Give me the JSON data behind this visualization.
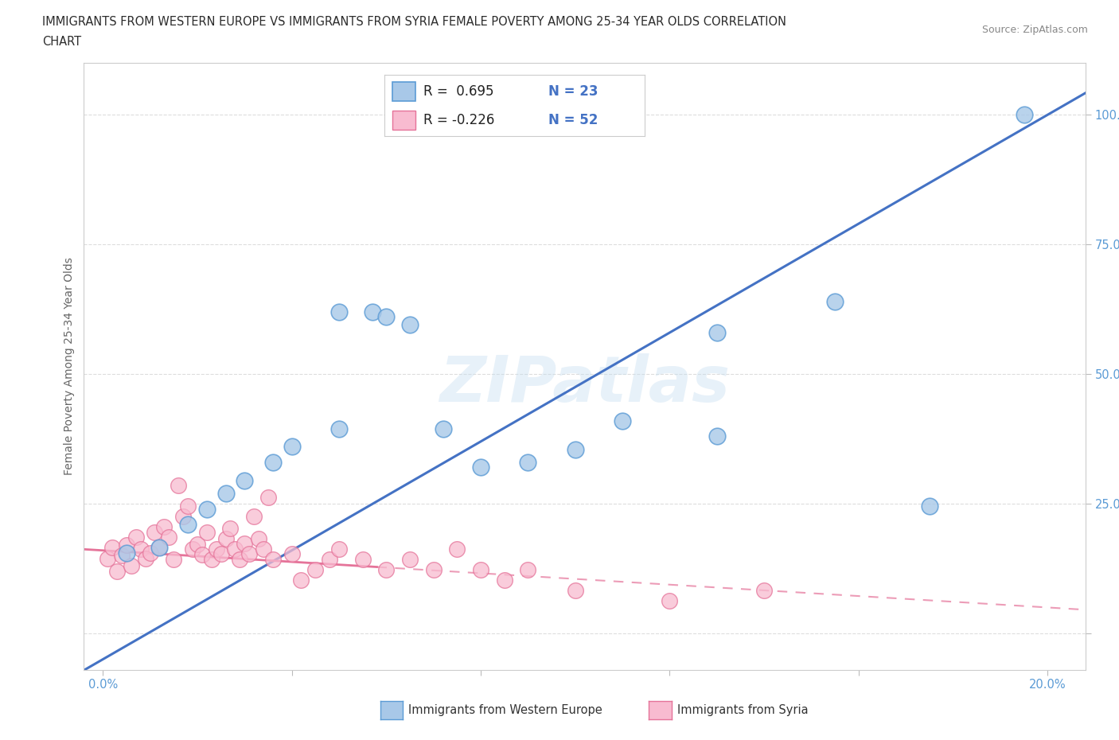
{
  "title_line1": "IMMIGRANTS FROM WESTERN EUROPE VS IMMIGRANTS FROM SYRIA FEMALE POVERTY AMONG 25-34 YEAR OLDS CORRELATION",
  "title_line2": "CHART",
  "source": "Source: ZipAtlas.com",
  "ylabel": "Female Poverty Among 25-34 Year Olds",
  "watermark": "ZIPatlas",
  "blue_color": "#a8c8e8",
  "blue_edge": "#5b9bd5",
  "blue_line": "#4472c4",
  "pink_color": "#f8bbd0",
  "pink_edge": "#e57399",
  "pink_line": "#e57399",
  "background": "#ffffff",
  "grid_color": "#dddddd",
  "tick_color": "#5b9bd5",
  "label_color": "#666666",
  "xlim": [
    -0.004,
    0.208
  ],
  "ylim": [
    -0.07,
    1.1
  ],
  "blue_x": [
    0.005,
    0.012,
    0.018,
    0.022,
    0.026,
    0.03,
    0.036,
    0.04,
    0.05,
    0.057,
    0.065,
    0.072,
    0.08,
    0.09,
    0.1,
    0.11,
    0.13,
    0.155,
    0.175,
    0.195,
    0.05,
    0.06,
    0.13
  ],
  "blue_y": [
    0.155,
    0.165,
    0.21,
    0.24,
    0.27,
    0.295,
    0.33,
    0.36,
    0.395,
    0.62,
    0.595,
    0.395,
    0.32,
    0.33,
    0.355,
    0.41,
    0.38,
    0.64,
    0.245,
    1.0,
    0.62,
    0.61,
    0.58
  ],
  "pink_x": [
    0.001,
    0.002,
    0.003,
    0.004,
    0.005,
    0.006,
    0.007,
    0.008,
    0.009,
    0.01,
    0.011,
    0.012,
    0.013,
    0.014,
    0.015,
    0.016,
    0.017,
    0.018,
    0.019,
    0.02,
    0.021,
    0.022,
    0.023,
    0.024,
    0.025,
    0.026,
    0.027,
    0.028,
    0.029,
    0.03,
    0.031,
    0.032,
    0.033,
    0.034,
    0.035,
    0.036,
    0.04,
    0.042,
    0.045,
    0.048,
    0.05,
    0.055,
    0.06,
    0.065,
    0.07,
    0.075,
    0.08,
    0.085,
    0.09,
    0.1,
    0.12,
    0.14
  ],
  "pink_y": [
    0.145,
    0.165,
    0.12,
    0.15,
    0.17,
    0.13,
    0.185,
    0.162,
    0.145,
    0.155,
    0.195,
    0.165,
    0.205,
    0.185,
    0.143,
    0.285,
    0.225,
    0.245,
    0.162,
    0.172,
    0.152,
    0.195,
    0.143,
    0.163,
    0.153,
    0.183,
    0.203,
    0.163,
    0.143,
    0.173,
    0.153,
    0.225,
    0.183,
    0.163,
    0.263,
    0.143,
    0.153,
    0.103,
    0.123,
    0.143,
    0.163,
    0.143,
    0.123,
    0.143,
    0.123,
    0.163,
    0.123,
    0.103,
    0.123,
    0.083,
    0.063,
    0.083
  ],
  "x_tick_positions": [
    0.0,
    0.04,
    0.08,
    0.12,
    0.16,
    0.2
  ],
  "x_tick_labels": [
    "0.0%",
    "",
    "",
    "",
    "",
    "20.0%"
  ],
  "y_tick_positions": [
    0.0,
    0.25,
    0.5,
    0.75,
    1.0
  ],
  "y_tick_labels": [
    "",
    "25.0%",
    "50.0%",
    "75.0%",
    "100.0%"
  ],
  "legend_items": [
    {
      "label_r": "R =  0.695",
      "label_n": "N = 23",
      "fc": "#a8c8e8",
      "ec": "#5b9bd5"
    },
    {
      "label_r": "R = -0.226",
      "label_n": "N = 52",
      "fc": "#f8bbd0",
      "ec": "#e57399"
    }
  ]
}
